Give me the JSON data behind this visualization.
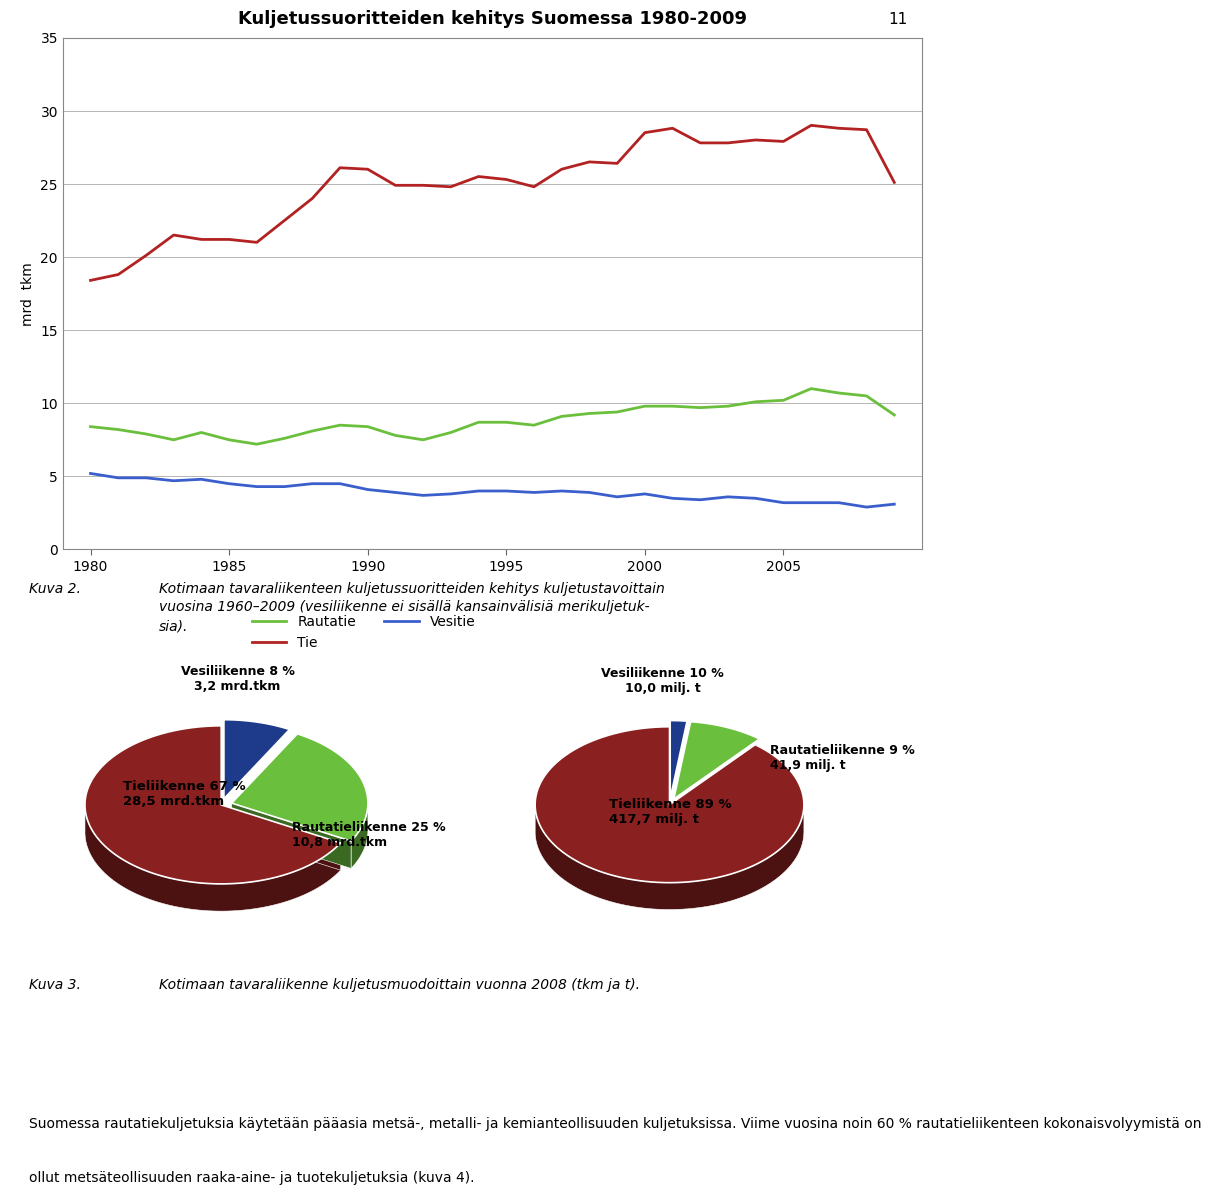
{
  "title": "Kuljetussuoritteiden kehitys Suomessa 1980-2009",
  "ylabel": "mrd  tkm",
  "years": [
    1980,
    1981,
    1982,
    1983,
    1984,
    1985,
    1986,
    1987,
    1988,
    1989,
    1990,
    1991,
    1992,
    1993,
    1994,
    1995,
    1996,
    1997,
    1998,
    1999,
    2000,
    2001,
    2002,
    2003,
    2004,
    2005,
    2006,
    2007,
    2008,
    2009
  ],
  "tie": [
    18.4,
    18.8,
    20.1,
    21.5,
    21.2,
    21.2,
    21.0,
    22.5,
    24.0,
    26.1,
    26.0,
    24.9,
    24.9,
    24.8,
    25.5,
    25.3,
    24.8,
    26.0,
    26.5,
    26.4,
    28.5,
    28.8,
    27.8,
    27.8,
    28.0,
    27.9,
    29.0,
    28.8,
    28.7,
    25.1
  ],
  "rautatie": [
    8.4,
    8.2,
    7.9,
    7.5,
    8.0,
    7.5,
    7.2,
    7.6,
    8.1,
    8.5,
    8.4,
    7.8,
    7.5,
    8.0,
    8.7,
    8.7,
    8.5,
    9.1,
    9.3,
    9.4,
    9.8,
    9.8,
    9.7,
    9.8,
    10.1,
    10.2,
    11.0,
    10.7,
    10.5,
    9.2
  ],
  "vesitie": [
    5.2,
    4.9,
    4.9,
    4.7,
    4.8,
    4.5,
    4.3,
    4.3,
    4.5,
    4.5,
    4.1,
    3.9,
    3.7,
    3.8,
    4.0,
    4.0,
    3.9,
    4.0,
    3.9,
    3.6,
    3.8,
    3.5,
    3.4,
    3.6,
    3.5,
    3.2,
    3.2,
    3.2,
    2.9,
    3.1
  ],
  "tie_color": "#b22222",
  "rautatie_color": "#6abf3c",
  "vesitie_color": "#3a5fcd",
  "line_width": 2.0,
  "ylim": [
    0,
    35
  ],
  "yticks": [
    0,
    5,
    10,
    15,
    20,
    25,
    30,
    35
  ],
  "xticks": [
    1980,
    1985,
    1990,
    1995,
    2000,
    2005
  ],
  "page_number": "11",
  "kuva2_label": "Kuva 2.",
  "kuva2_text": "Kotimaan tavaraliikenteen kuljetussuoritteiden kehitys kuljetustavoittain\nvuosina 1960–2009 (vesiliikenne ei sisällä kansainvälisiä merikuljetuk-\nsia).",
  "kuva3_label": "Kuva 3.",
  "kuva3_text": "Kotimaan tavaraliikenne kuljetusmuodoittain vuonna 2008 (tkm ja t).",
  "body_text_line1": "Suomessa rautatiekuljetuksia käytetään pääasia metsä-, metalli- ja kemianteollisuuden kuljetuksissa. Viime vuosina noin 60 % rautatieliikenteen kokonaisvolyymistä on",
  "body_text_line2": "ollut metsäteollisuuden raaka-aine- ja tuotekuljetuksia (kuva 4).",
  "pie1_sizes": [
    67,
    25,
    8
  ],
  "pie1_colors": [
    "#8b2020",
    "#6abf3c",
    "#1e3a8a"
  ],
  "pie2_sizes": [
    89,
    9,
    2
  ],
  "pie2_colors": [
    "#8b2020",
    "#6abf3c",
    "#1e3a8a"
  ],
  "background_color": "#ffffff"
}
